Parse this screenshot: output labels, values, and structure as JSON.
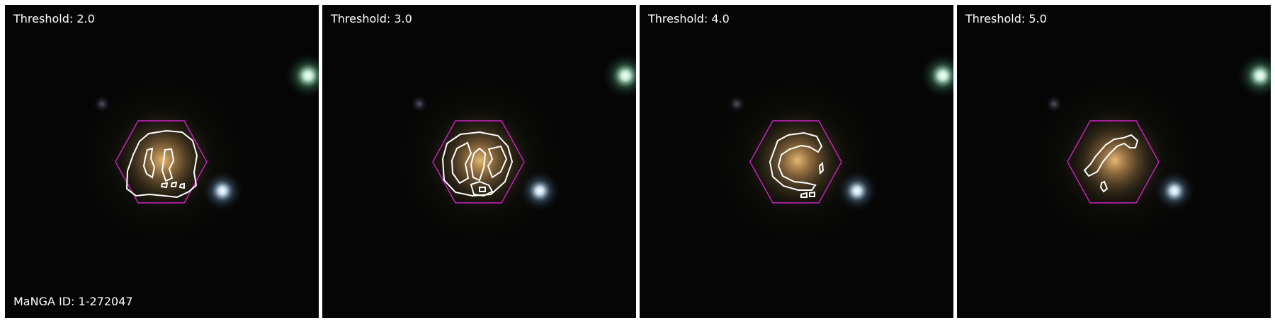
{
  "panels": [
    {
      "threshold_label": "Threshold: 2.0"
    },
    {
      "threshold_label": "Threshold: 3.0"
    },
    {
      "threshold_label": "Threshold: 4.0"
    },
    {
      "threshold_label": "Threshold: 5.0"
    }
  ],
  "manga_id_label": "MaNGA ID: 1-272047",
  "colors": {
    "background": "#050505",
    "hexagon": "#d020c8",
    "contour": "#ffffff",
    "galaxy_core": "#e0b070",
    "star": "#dff8ee"
  }
}
